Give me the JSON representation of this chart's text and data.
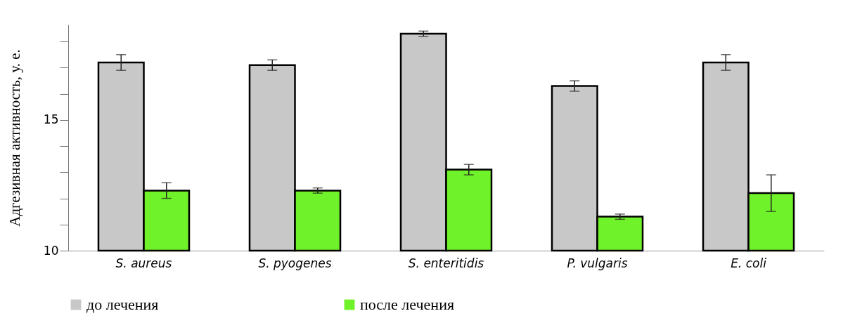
{
  "chart_data": {
    "type": "bar",
    "ylabel": "Адгезивная активность, у. е.",
    "categories": [
      "S. aureus",
      "S. pyogenes",
      "S. enteritidis",
      "P. vulgaris",
      "E. coli"
    ],
    "series": [
      {
        "name": "до лечения",
        "color": "#c8c8c8",
        "values": [
          17.2,
          17.1,
          18.3,
          16.3,
          17.2
        ],
        "errors": [
          0.3,
          0.2,
          0.1,
          0.2,
          0.3
        ]
      },
      {
        "name": "после лечения",
        "color": "#70f22a",
        "values": [
          12.3,
          12.3,
          13.1,
          11.3,
          12.2
        ],
        "errors": [
          0.3,
          0.1,
          0.2,
          0.1,
          [
            11.5,
            12.9
          ]
        ]
      }
    ],
    "ylim": [
      10,
      18.65
    ],
    "yticks": [
      10,
      {
        "value": 11,
        "label": null
      },
      {
        "value": 12,
        "label": null
      },
      {
        "value": 13,
        "label": null
      },
      {
        "value": 14,
        "label": null
      },
      15,
      {
        "value": 16,
        "label": null
      },
      {
        "value": 17,
        "label": null
      },
      {
        "value": 18,
        "label": null
      }
    ],
    "grid": false,
    "legend": "bottom"
  }
}
